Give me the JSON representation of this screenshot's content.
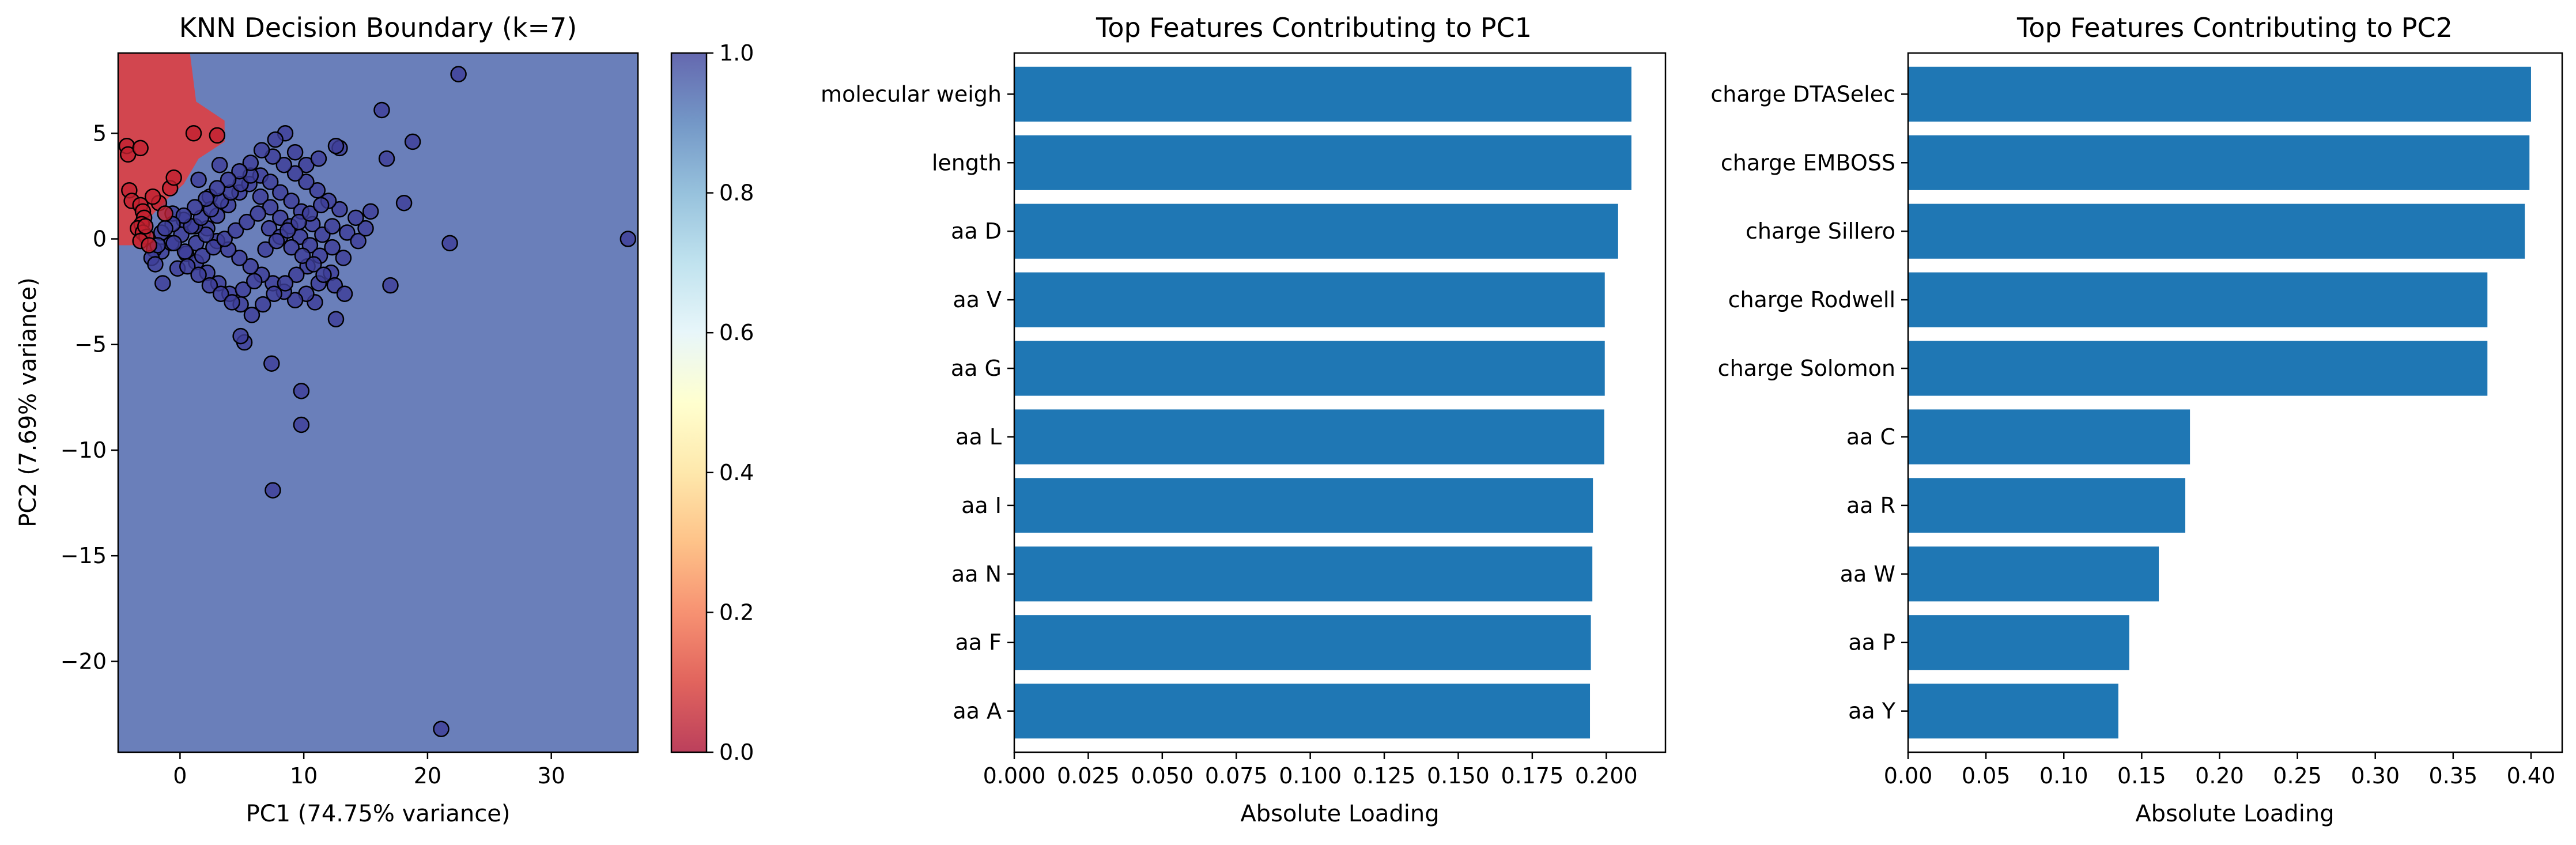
{
  "chart_data": [
    {
      "type": "scatter",
      "title": "KNN Decision Boundary (k=7)",
      "xlabel": "PC1 (74.75% variance)",
      "ylabel": "PC2 (7.69% variance)",
      "xlim": [
        -5,
        37
      ],
      "ylim": [
        -24.3,
        8.8
      ],
      "xticks": [
        0,
        10,
        20,
        30
      ],
      "yticks": [
        -20,
        -15,
        -10,
        -5,
        0,
        5
      ],
      "colormap": "RdYlBu",
      "colorbar": {
        "ticks": [
          0.0,
          0.2,
          0.4,
          0.6,
          0.8,
          1.0
        ],
        "range": [
          0.0,
          1.0
        ]
      },
      "colors": {
        "class_0": "#d2464f",
        "class_1": "#6a7fba",
        "point_edge": "#000000"
      },
      "decision_region_class_0": [
        [
          -5,
          8.8
        ],
        [
          0.8,
          8.8
        ],
        [
          1.3,
          6.5
        ],
        [
          3.6,
          5.6
        ],
        [
          3.6,
          4.6
        ],
        [
          1.5,
          3.8
        ],
        [
          0.3,
          2.6
        ],
        [
          -1.2,
          1.8
        ],
        [
          -2.6,
          0.9
        ],
        [
          -3.2,
          -0.3
        ],
        [
          -5,
          -0.3
        ]
      ],
      "series": [
        {
          "class": 0,
          "points": [
            [
              -4.3,
              4.4
            ],
            [
              -4.2,
              4.0
            ],
            [
              -3.2,
              4.3
            ],
            [
              -4.1,
              2.3
            ],
            [
              -3.9,
              1.8
            ],
            [
              -3.2,
              1.6
            ],
            [
              -3.0,
              1.3
            ],
            [
              -2.9,
              1.0
            ],
            [
              -3.1,
              0.7
            ],
            [
              -3.4,
              0.5
            ],
            [
              -3.0,
              0.3
            ],
            [
              -2.7,
              0.1
            ],
            [
              -3.2,
              -0.1
            ],
            [
              -2.5,
              -0.3
            ],
            [
              -2.8,
              0.6
            ],
            [
              -1.7,
              1.7
            ],
            [
              -1.2,
              1.2
            ],
            [
              -0.8,
              2.4
            ],
            [
              1.1,
              5.0
            ],
            [
              3.0,
              4.9
            ],
            [
              -0.5,
              2.9
            ],
            [
              -2.2,
              2.0
            ]
          ]
        },
        {
          "class": 1,
          "points": [
            [
              22.5,
              7.8
            ],
            [
              36.2,
              0.0
            ],
            [
              21.8,
              -0.2
            ],
            [
              21.1,
              -23.2
            ],
            [
              7.5,
              -11.9
            ],
            [
              9.8,
              -8.8
            ],
            [
              9.8,
              -7.2
            ],
            [
              7.4,
              -5.9
            ],
            [
              5.2,
              -4.9
            ],
            [
              4.9,
              -4.6
            ],
            [
              17.0,
              -2.2
            ],
            [
              10.9,
              -3.0
            ],
            [
              12.6,
              -3.8
            ],
            [
              16.3,
              6.1
            ],
            [
              18.8,
              4.6
            ],
            [
              16.7,
              3.8
            ],
            [
              18.1,
              1.7
            ],
            [
              15.4,
              1.3
            ],
            [
              12.9,
              4.3
            ],
            [
              12.6,
              4.4
            ],
            [
              8.5,
              5.0
            ],
            [
              7.7,
              4.7
            ],
            [
              9.3,
              4.1
            ],
            [
              10.2,
              3.5
            ],
            [
              11.2,
              3.8
            ],
            [
              3.2,
              3.5
            ],
            [
              1.5,
              2.8
            ],
            [
              2.4,
              2.0
            ],
            [
              -1.4,
              -2.1
            ],
            [
              -0.2,
              -1.4
            ],
            [
              0.5,
              -0.7
            ],
            [
              1.3,
              -0.2
            ],
            [
              2.2,
              0.5
            ],
            [
              3.0,
              1.1
            ],
            [
              3.9,
              1.6
            ],
            [
              4.8,
              2.2
            ],
            [
              5.6,
              2.6
            ],
            [
              6.5,
              3.0
            ],
            [
              7.3,
              2.7
            ],
            [
              8.1,
              2.2
            ],
            [
              9.0,
              1.8
            ],
            [
              9.8,
              1.3
            ],
            [
              10.7,
              0.7
            ],
            [
              11.5,
              0.2
            ],
            [
              12.3,
              -0.4
            ],
            [
              13.2,
              -0.9
            ],
            [
              12.2,
              -1.6
            ],
            [
              11.2,
              -2.1
            ],
            [
              10.2,
              -2.6
            ],
            [
              9.3,
              -2.9
            ],
            [
              8.4,
              -2.5
            ],
            [
              7.5,
              -2.1
            ],
            [
              6.6,
              -1.7
            ],
            [
              5.7,
              -1.3
            ],
            [
              4.8,
              -0.9
            ],
            [
              3.9,
              -0.5
            ],
            [
              3.0,
              -0.1
            ],
            [
              2.1,
              0.2
            ],
            [
              1.2,
              0.6
            ],
            [
              0.3,
              0.9
            ],
            [
              -0.6,
              1.2
            ],
            [
              -1.5,
              -0.6
            ],
            [
              -0.7,
              -0.2
            ],
            [
              0.1,
              0.2
            ],
            [
              0.9,
              0.6
            ],
            [
              1.7,
              1.0
            ],
            [
              2.5,
              1.4
            ],
            [
              3.3,
              1.8
            ],
            [
              4.1,
              2.2
            ],
            [
              4.9,
              2.6
            ],
            [
              5.7,
              3.0
            ],
            [
              6.5,
              2.0
            ],
            [
              7.3,
              1.5
            ],
            [
              8.1,
              1.0
            ],
            [
              8.9,
              0.6
            ],
            [
              9.7,
              0.1
            ],
            [
              10.5,
              -0.3
            ],
            [
              11.3,
              -0.8
            ],
            [
              10.3,
              -1.3
            ],
            [
              9.4,
              -1.7
            ],
            [
              8.5,
              -2.1
            ],
            [
              7.6,
              -2.6
            ],
            [
              6.7,
              -3.1
            ],
            [
              5.8,
              -3.6
            ],
            [
              4.9,
              -3.1
            ],
            [
              4.0,
              -2.6
            ],
            [
              3.1,
              -2.1
            ],
            [
              2.2,
              -1.6
            ],
            [
              1.3,
              -1.1
            ],
            [
              0.4,
              -0.6
            ],
            [
              -0.5,
              -0.2
            ],
            [
              1.8,
              -0.8
            ],
            [
              2.7,
              -0.4
            ],
            [
              3.6,
              0.0
            ],
            [
              4.5,
              0.4
            ],
            [
              5.4,
              0.8
            ],
            [
              6.3,
              1.2
            ],
            [
              7.2,
              0.5
            ],
            [
              8.1,
              0.1
            ],
            [
              9.0,
              -0.4
            ],
            [
              9.9,
              -0.8
            ],
            [
              10.8,
              -1.2
            ],
            [
              11.6,
              -1.7
            ],
            [
              12.5,
              -2.2
            ],
            [
              13.3,
              -2.6
            ],
            [
              12.9,
              1.4
            ],
            [
              12.0,
              1.8
            ],
            [
              11.1,
              2.3
            ],
            [
              10.2,
              2.7
            ],
            [
              9.3,
              3.1
            ],
            [
              8.4,
              3.5
            ],
            [
              7.5,
              3.9
            ],
            [
              6.6,
              4.2
            ],
            [
              5.7,
              3.6
            ],
            [
              4.8,
              3.2
            ],
            [
              3.9,
              2.8
            ],
            [
              3.0,
              2.4
            ],
            [
              2.1,
              1.9
            ],
            [
              1.2,
              1.5
            ],
            [
              0.3,
              1.1
            ],
            [
              -0.6,
              0.7
            ],
            [
              -1.5,
              0.3
            ],
            [
              -2.1,
              -0.5
            ],
            [
              -2.3,
              -0.9
            ],
            [
              -2.0,
              -1.2
            ],
            [
              -1.8,
              -0.3
            ],
            [
              -1.2,
              0.5
            ],
            [
              0.6,
              -1.3
            ],
            [
              1.5,
              -1.7
            ],
            [
              2.4,
              -2.2
            ],
            [
              3.3,
              -2.6
            ],
            [
              4.2,
              -3.0
            ],
            [
              5.1,
              -2.4
            ],
            [
              6.0,
              -2.0
            ],
            [
              6.9,
              -0.5
            ],
            [
              7.8,
              -0.1
            ],
            [
              8.7,
              0.4
            ],
            [
              9.6,
              0.8
            ],
            [
              10.5,
              1.2
            ],
            [
              11.4,
              1.6
            ],
            [
              12.3,
              0.6
            ],
            [
              13.5,
              0.3
            ],
            [
              14.4,
              -0.1
            ],
            [
              15.0,
              0.5
            ],
            [
              14.2,
              1.0
            ]
          ]
        }
      ]
    },
    {
      "type": "bar",
      "orientation": "horizontal",
      "title": "Top Features Contributing to PC1",
      "xlabel": "Absolute Loading",
      "ylabel": "",
      "xlim": [
        0,
        0.22
      ],
      "xticks": [
        "0.000",
        "0.025",
        "0.050",
        "0.075",
        "0.100",
        "0.125",
        "0.150",
        "0.175",
        "0.200"
      ],
      "bar_color": "#1f77b4",
      "categories": [
        "molecular weigh",
        "length",
        "aa D",
        "aa V",
        "aa G",
        "aa L",
        "aa I",
        "aa N",
        "aa F",
        "aa A"
      ],
      "values": [
        0.2085,
        0.2085,
        0.204,
        0.1995,
        0.1995,
        0.1993,
        0.1955,
        0.1953,
        0.1948,
        0.1945
      ]
    },
    {
      "type": "bar",
      "orientation": "horizontal",
      "title": "Top Features Contributing to PC2",
      "xlabel": "Absolute Loading",
      "ylabel": "",
      "xlim": [
        0,
        0.42
      ],
      "xticks": [
        "0.00",
        "0.05",
        "0.10",
        "0.15",
        "0.20",
        "0.25",
        "0.30",
        "0.35",
        "0.40"
      ],
      "bar_color": "#1f77b4",
      "categories": [
        "charge DTASelec",
        "charge EMBOSS",
        "charge Sillero",
        "charge Rodwell",
        "charge Solomon",
        "aa C",
        "aa R",
        "aa W",
        "aa P",
        "aa Y"
      ],
      "values": [
        0.4,
        0.399,
        0.396,
        0.372,
        0.372,
        0.181,
        0.178,
        0.161,
        0.142,
        0.135
      ]
    }
  ]
}
